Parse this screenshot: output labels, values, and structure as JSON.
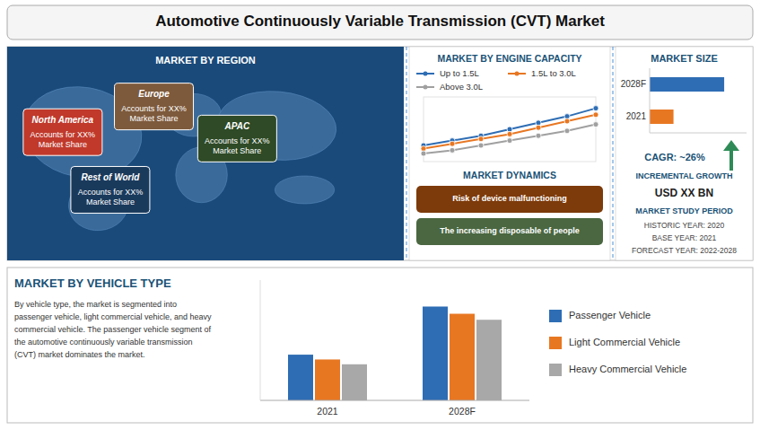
{
  "title": "Automotive Continuously Variable Transmission (CVT) Market",
  "chart_data": [
    {
      "type": "map",
      "title": "MARKET BY REGION",
      "categories": [
        "North America",
        "Europe",
        "APAC",
        "Rest of World"
      ],
      "colors": [
        "#c0392b",
        "#7d5a3c",
        "#2e4a26",
        "#1a3a5c"
      ],
      "annotations": [
        "Accounts for XX%\nMarket Share",
        "Accounts for XX%\nMarket Share",
        "Accounts for XX%\nMarket Share",
        "Accounts for XX%\nMarket Share"
      ]
    },
    {
      "type": "line",
      "title": "MARKET BY ENGINE CAPACITY",
      "categories": [
        null,
        null,
        null,
        null,
        null,
        null,
        null
      ],
      "series": [
        {
          "name": "Up to 1.5L",
          "color": "#2e6db4",
          "values": [
            30,
            33,
            36,
            40,
            44,
            48,
            53
          ]
        },
        {
          "name": "1.5L to 3.0L",
          "color": "#e87722",
          "values": [
            28,
            31,
            34,
            37,
            41,
            45,
            49
          ]
        },
        {
          "name": "Above 3.0L",
          "color": "#a0a0a0",
          "values": [
            25,
            27,
            30,
            33,
            36,
            39,
            43
          ]
        }
      ],
      "ylim": [
        20,
        60
      ],
      "tick_labels": false,
      "legend": "top",
      "marker": "circle"
    },
    {
      "type": "text",
      "title": "MARKET DYNAMICS",
      "annotations": [
        "Risk of device malfunctioning",
        "The increasing disposable of people"
      ],
      "colors": [
        "#7d3a0a",
        "#4a6741"
      ]
    },
    {
      "type": "bar",
      "orientation": "horizontal",
      "title": "MARKET SIZE",
      "categories": [
        "2021",
        "2028F"
      ],
      "values": [
        32,
        100
      ],
      "colors": [
        "#e87722",
        "#2e6db4"
      ],
      "xlim": [
        0,
        130
      ],
      "tick_labels": "y",
      "annotations": [
        "CAGR: ~26%",
        "INCREMENTAL GROWTH",
        "USD XX BN",
        "MARKET STUDY PERIOD",
        "HISTORIC YEAR: 2020",
        "BASE YEAR: 2021",
        "FORECAST YEAR: 2022-2028"
      ]
    },
    {
      "type": "bar",
      "title": "MARKET BY VEHICLE TYPE",
      "categories": [
        "2021",
        "2028F"
      ],
      "series": [
        {
          "name": "Passenger Vehicle",
          "color": "#2e6db4",
          "values": [
            38,
            78
          ]
        },
        {
          "name": "Light Commercial Vehicle",
          "color": "#e87722",
          "values": [
            34,
            72
          ]
        },
        {
          "name": "Heavy Commercial Vehicle",
          "color": "#a8a8a8",
          "values": [
            30,
            67
          ]
        }
      ],
      "ylim": [
        0,
        100
      ],
      "tick_labels": "x",
      "legend": "right",
      "annotations": [
        "By vehicle type, the market is segmented into\npassenger vehicle, light commercial vehicle, and heavy\ncommercial vehicle. The passenger vehicle segment of\nthe automotive continuously variable transmission\n(CVT) market dominates the market."
      ]
    }
  ]
}
